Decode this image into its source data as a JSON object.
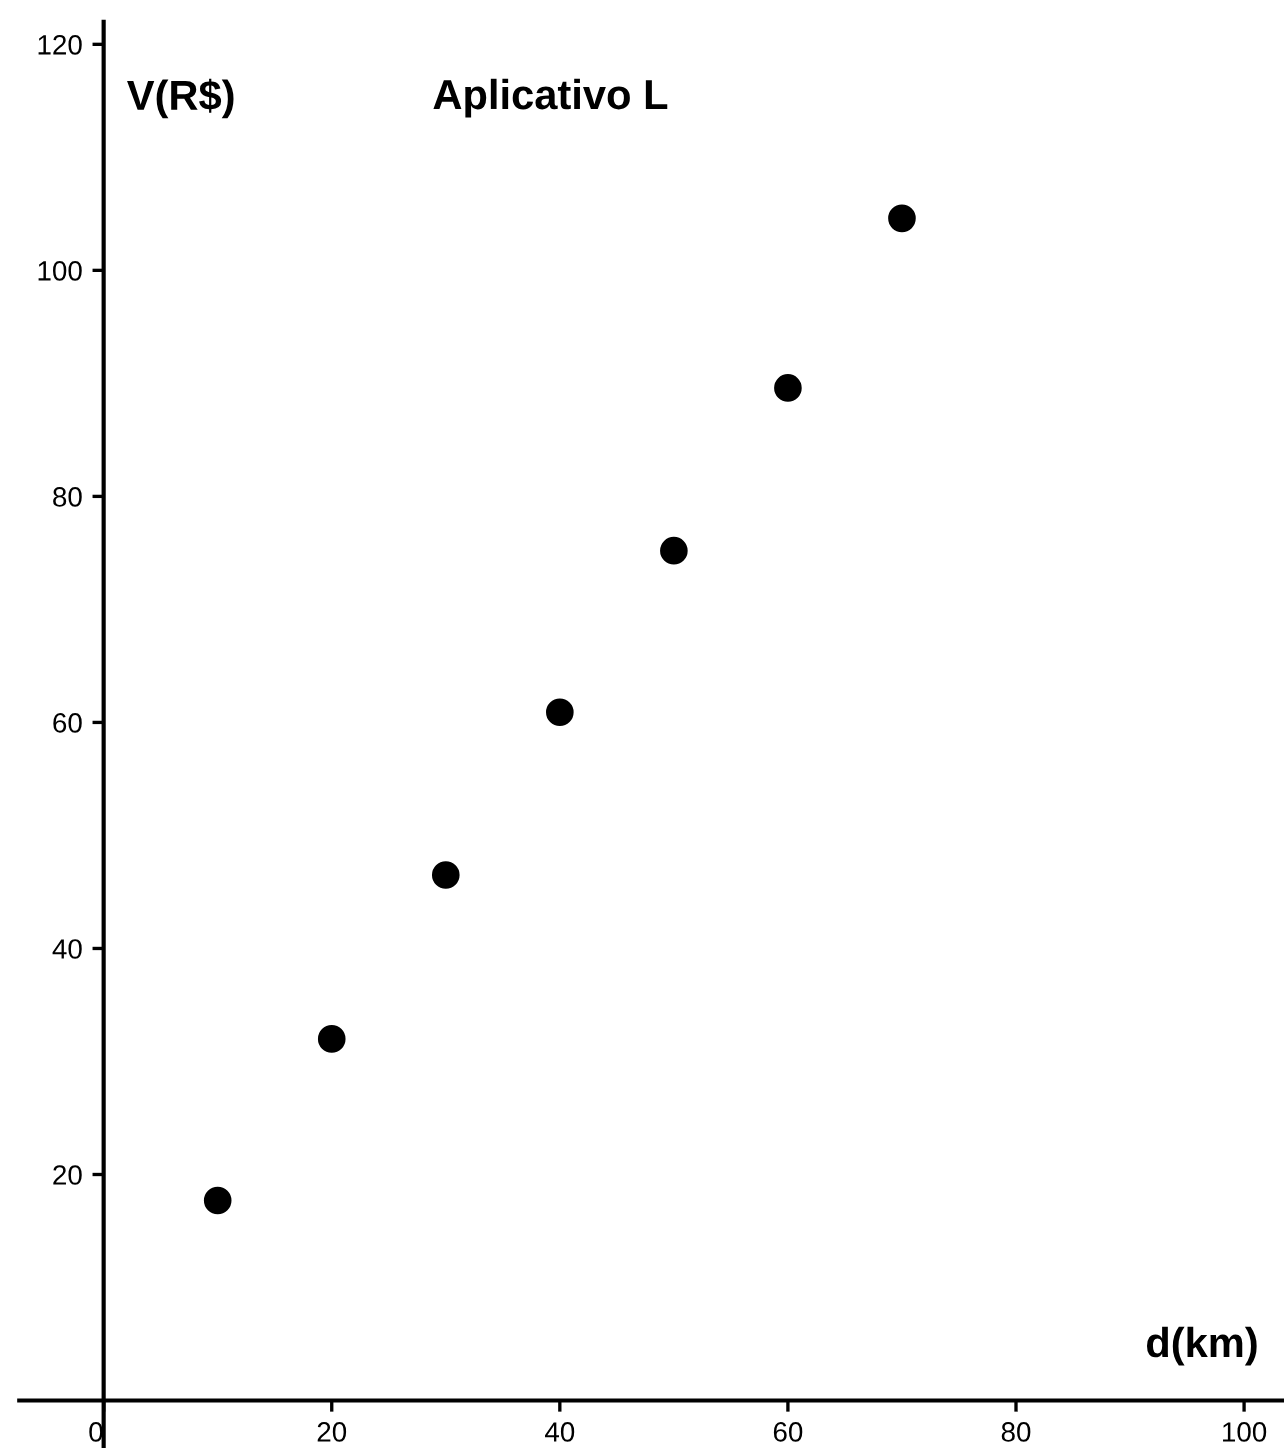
{
  "chart_data": {
    "type": "scatter",
    "title": "Aplicativo L",
    "xlabel": "d(km)",
    "ylabel": "V(R$)",
    "x": [
      10,
      20,
      30,
      40,
      50,
      60,
      70
    ],
    "series": [
      {
        "color": "#000000",
        "values": [
          17.7,
          32.0,
          46.5,
          60.9,
          75.2,
          89.6,
          104.6
        ]
      }
    ],
    "xlim": [
      -7.4,
      103.5
    ],
    "ylim": [
      -4.2,
      122
    ],
    "xticks": [
      0,
      20,
      40,
      60,
      80,
      100
    ],
    "yticks": [
      20,
      40,
      60,
      80,
      100,
      120
    ],
    "marker": "circle",
    "grid": false,
    "legend": false
  }
}
